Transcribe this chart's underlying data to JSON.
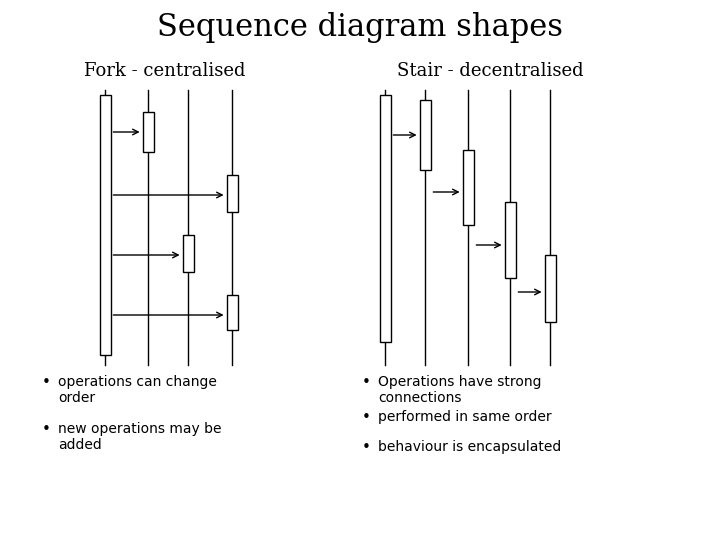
{
  "title": "Sequence diagram shapes",
  "title_fontsize": 22,
  "background_color": "#ffffff",
  "fork_label": "Fork - centralised",
  "stair_label": "Stair - decentralised",
  "label_fontsize": 13,
  "bullet_fontsize": 10,
  "left_bullets": [
    "operations can change\norder",
    "new operations may be\nadded"
  ],
  "right_bullets": [
    "Operations have strong\nconnections",
    "performed in same order",
    "behaviour is encapsulated"
  ]
}
